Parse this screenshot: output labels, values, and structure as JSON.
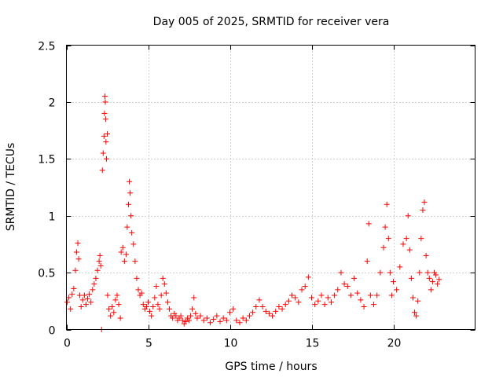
{
  "chart_data": {
    "type": "scatter",
    "title": "Day 005 of 2025, SRMTID for receiver vera",
    "xlabel": "GPS time / hours",
    "ylabel": "SRMTID / TECUs",
    "xlim": [
      0,
      25
    ],
    "ylim": [
      0,
      2.5
    ],
    "xticks": [
      0,
      5,
      10,
      15,
      20
    ],
    "yticks": [
      0,
      0.5,
      1,
      1.5,
      2,
      2.5
    ],
    "ytick_labels": [
      "0",
      "0.5",
      "1",
      "1.5",
      "2",
      "2.5"
    ],
    "grid": true,
    "marker": "+",
    "color": "#ff0000",
    "series": [
      {
        "name": "SRMTID",
        "points": [
          [
            0.05,
            0.24
          ],
          [
            0.15,
            0.28
          ],
          [
            0.25,
            0.18
          ],
          [
            0.35,
            0.31
          ],
          [
            0.45,
            0.36
          ],
          [
            0.55,
            0.52
          ],
          [
            0.62,
            0.68
          ],
          [
            0.7,
            0.76
          ],
          [
            0.75,
            0.62
          ],
          [
            0.82,
            0.3
          ],
          [
            0.9,
            0.2
          ],
          [
            1.0,
            0.26
          ],
          [
            1.1,
            0.3
          ],
          [
            1.2,
            0.22
          ],
          [
            1.3,
            0.27
          ],
          [
            1.4,
            0.31
          ],
          [
            1.5,
            0.24
          ],
          [
            1.6,
            0.35
          ],
          [
            1.7,
            0.4
          ],
          [
            1.8,
            0.45
          ],
          [
            1.9,
            0.52
          ],
          [
            2.0,
            0.6
          ],
          [
            2.05,
            0.65
          ],
          [
            2.1,
            0.56
          ],
          [
            2.15,
            0.0
          ],
          [
            2.2,
            1.4
          ],
          [
            2.25,
            1.55
          ],
          [
            2.3,
            1.7
          ],
          [
            2.33,
            1.9
          ],
          [
            2.36,
            2.05
          ],
          [
            2.38,
            2.0
          ],
          [
            2.4,
            1.85
          ],
          [
            2.42,
            1.65
          ],
          [
            2.45,
            1.5
          ],
          [
            2.5,
            1.72
          ],
          [
            2.52,
            0.3
          ],
          [
            2.6,
            0.18
          ],
          [
            2.7,
            0.12
          ],
          [
            2.8,
            0.2
          ],
          [
            2.9,
            0.15
          ],
          [
            3.0,
            0.26
          ],
          [
            3.1,
            0.3
          ],
          [
            3.2,
            0.22
          ],
          [
            3.3,
            0.1
          ],
          [
            3.35,
            0.68
          ],
          [
            3.45,
            0.72
          ],
          [
            3.55,
            0.6
          ],
          [
            3.65,
            0.66
          ],
          [
            3.72,
            0.9
          ],
          [
            3.8,
            1.1
          ],
          [
            3.85,
            1.3
          ],
          [
            3.9,
            1.2
          ],
          [
            3.95,
            1.0
          ],
          [
            4.0,
            0.85
          ],
          [
            4.1,
            0.75
          ],
          [
            4.2,
            0.6
          ],
          [
            4.3,
            0.45
          ],
          [
            4.4,
            0.35
          ],
          [
            4.5,
            0.3
          ],
          [
            4.6,
            0.32
          ],
          [
            4.7,
            0.22
          ],
          [
            4.8,
            0.18
          ],
          [
            4.9,
            0.2
          ],
          [
            5.0,
            0.24
          ],
          [
            5.1,
            0.16
          ],
          [
            5.2,
            0.12
          ],
          [
            5.3,
            0.2
          ],
          [
            5.4,
            0.28
          ],
          [
            5.5,
            0.38
          ],
          [
            5.6,
            0.22
          ],
          [
            5.7,
            0.18
          ],
          [
            5.8,
            0.3
          ],
          [
            5.9,
            0.45
          ],
          [
            6.0,
            0.4
          ],
          [
            6.1,
            0.32
          ],
          [
            6.2,
            0.24
          ],
          [
            6.3,
            0.18
          ],
          [
            6.4,
            0.12
          ],
          [
            6.5,
            0.1
          ],
          [
            6.6,
            0.14
          ],
          [
            6.7,
            0.12
          ],
          [
            6.8,
            0.08
          ],
          [
            6.9,
            0.1
          ],
          [
            7.0,
            0.12
          ],
          [
            7.1,
            0.08
          ],
          [
            7.2,
            0.05
          ],
          [
            7.3,
            0.07
          ],
          [
            7.4,
            0.1
          ],
          [
            7.5,
            0.08
          ],
          [
            7.6,
            0.12
          ],
          [
            7.7,
            0.18
          ],
          [
            7.8,
            0.28
          ],
          [
            7.9,
            0.14
          ],
          [
            8.0,
            0.1
          ],
          [
            8.2,
            0.12
          ],
          [
            8.4,
            0.08
          ],
          [
            8.6,
            0.1
          ],
          [
            8.8,
            0.06
          ],
          [
            9.0,
            0.09
          ],
          [
            9.2,
            0.12
          ],
          [
            9.4,
            0.07
          ],
          [
            9.6,
            0.1
          ],
          [
            9.8,
            0.08
          ],
          [
            10.0,
            0.15
          ],
          [
            10.2,
            0.18
          ],
          [
            10.4,
            0.08
          ],
          [
            10.6,
            0.06
          ],
          [
            10.8,
            0.1
          ],
          [
            11.0,
            0.08
          ],
          [
            11.2,
            0.12
          ],
          [
            11.4,
            0.15
          ],
          [
            11.6,
            0.2
          ],
          [
            11.8,
            0.26
          ],
          [
            12.0,
            0.2
          ],
          [
            12.2,
            0.16
          ],
          [
            12.4,
            0.14
          ],
          [
            12.6,
            0.12
          ],
          [
            12.8,
            0.16
          ],
          [
            13.0,
            0.2
          ],
          [
            13.2,
            0.18
          ],
          [
            13.4,
            0.22
          ],
          [
            13.6,
            0.25
          ],
          [
            13.8,
            0.3
          ],
          [
            14.0,
            0.28
          ],
          [
            14.2,
            0.24
          ],
          [
            14.4,
            0.35
          ],
          [
            14.6,
            0.38
          ],
          [
            14.8,
            0.46
          ],
          [
            15.0,
            0.28
          ],
          [
            15.2,
            0.22
          ],
          [
            15.4,
            0.25
          ],
          [
            15.6,
            0.3
          ],
          [
            15.8,
            0.22
          ],
          [
            16.0,
            0.28
          ],
          [
            16.2,
            0.24
          ],
          [
            16.4,
            0.3
          ],
          [
            16.6,
            0.35
          ],
          [
            16.8,
            0.5
          ],
          [
            17.0,
            0.4
          ],
          [
            17.2,
            0.38
          ],
          [
            17.4,
            0.3
          ],
          [
            17.6,
            0.45
          ],
          [
            17.8,
            0.32
          ],
          [
            18.0,
            0.26
          ],
          [
            18.2,
            0.2
          ],
          [
            18.4,
            0.6
          ],
          [
            18.5,
            0.93
          ],
          [
            18.6,
            0.3
          ],
          [
            18.8,
            0.22
          ],
          [
            19.0,
            0.3
          ],
          [
            19.2,
            0.5
          ],
          [
            19.4,
            0.72
          ],
          [
            19.5,
            0.9
          ],
          [
            19.6,
            1.1
          ],
          [
            19.7,
            0.8
          ],
          [
            19.8,
            0.5
          ],
          [
            19.9,
            0.3
          ],
          [
            20.0,
            0.42
          ],
          [
            20.2,
            0.35
          ],
          [
            20.4,
            0.55
          ],
          [
            20.6,
            0.75
          ],
          [
            20.8,
            0.8
          ],
          [
            20.9,
            1.0
          ],
          [
            21.0,
            0.7
          ],
          [
            21.1,
            0.45
          ],
          [
            21.2,
            0.28
          ],
          [
            21.3,
            0.15
          ],
          [
            21.4,
            0.12
          ],
          [
            21.5,
            0.25
          ],
          [
            21.6,
            0.5
          ],
          [
            21.7,
            0.8
          ],
          [
            21.8,
            1.05
          ],
          [
            21.9,
            1.12
          ],
          [
            22.0,
            0.65
          ],
          [
            22.1,
            0.5
          ],
          [
            22.2,
            0.45
          ],
          [
            22.3,
            0.35
          ],
          [
            22.4,
            0.42
          ],
          [
            22.5,
            0.5
          ],
          [
            22.6,
            0.48
          ],
          [
            22.7,
            0.4
          ],
          [
            22.8,
            0.44
          ]
        ]
      }
    ]
  }
}
